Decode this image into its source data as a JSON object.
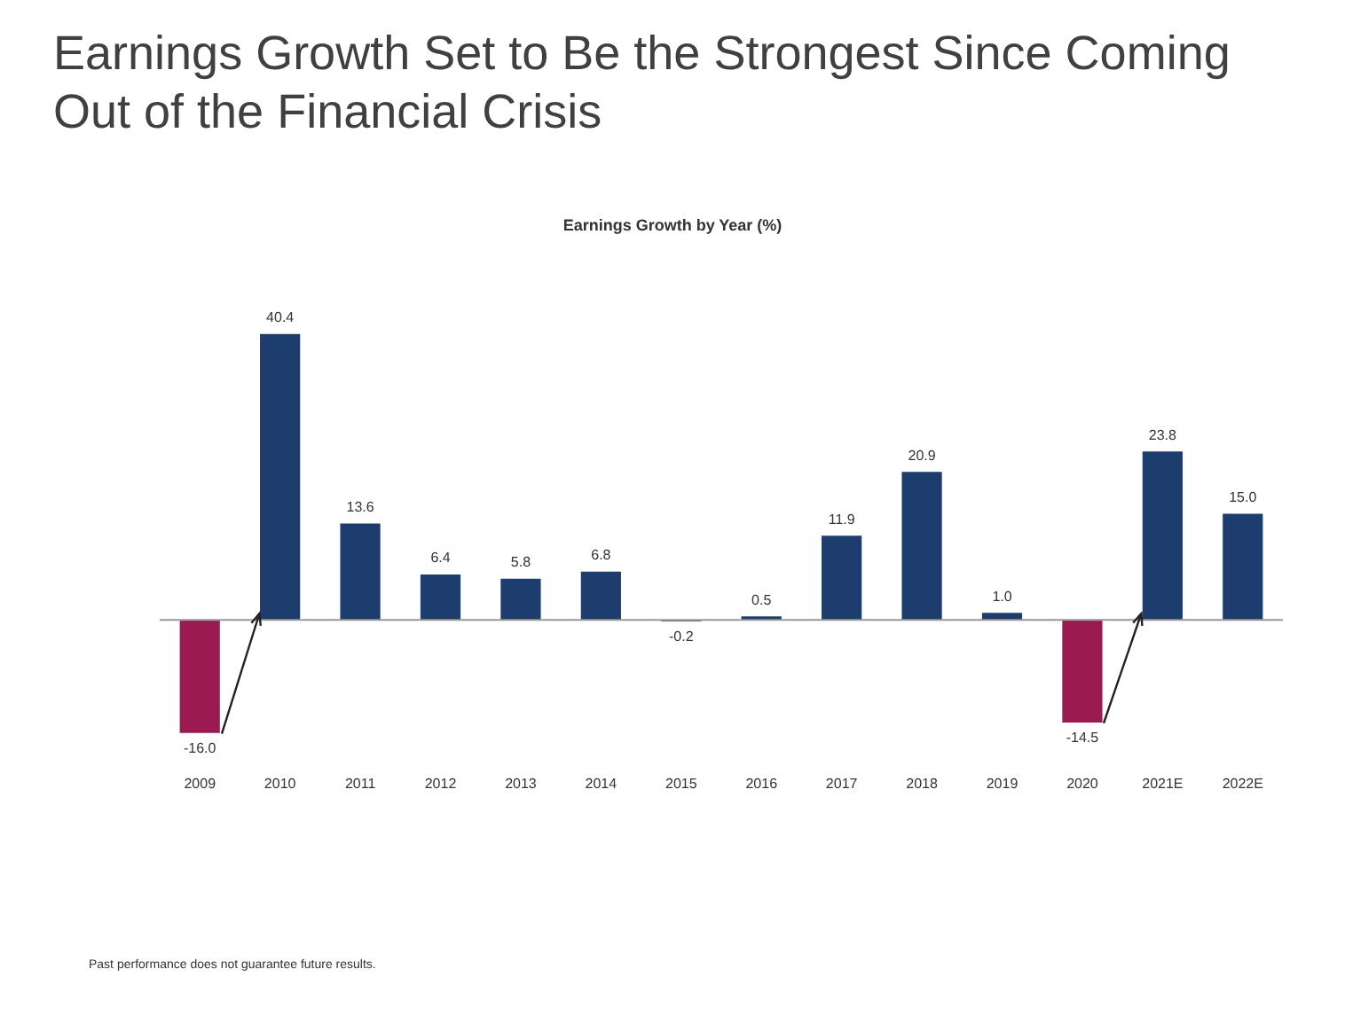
{
  "chart_data": {
    "type": "bar",
    "title": "Earnings Growth Set to Be the Strongest Since Coming Out of the Financial Crisis",
    "subtitle": "Earnings Growth by Year (%)",
    "categories": [
      "2009",
      "2010",
      "2011",
      "2012",
      "2013",
      "2014",
      "2015",
      "2016",
      "2017",
      "2018",
      "2019",
      "2020",
      "2021E",
      "2022E"
    ],
    "values": [
      -16.0,
      40.4,
      13.6,
      6.4,
      5.8,
      6.8,
      -0.2,
      0.5,
      11.9,
      20.9,
      1.0,
      -14.5,
      23.8,
      15.0
    ],
    "colors": [
      "#9c1a52",
      "#1d3d6e",
      "#1d3d6e",
      "#1d3d6e",
      "#1d3d6e",
      "#1d3d6e",
      "#1d3d6e",
      "#1d3d6e",
      "#1d3d6e",
      "#1d3d6e",
      "#1d3d6e",
      "#9c1a52",
      "#1d3d6e",
      "#1d3d6e"
    ],
    "value_labels": [
      "-16.0",
      "40.4",
      "13.6",
      "6.4",
      "5.8",
      "6.8",
      "-0.2",
      "0.5",
      "11.9",
      "20.9",
      "1.0",
      "-14.5",
      "23.8",
      "15.0"
    ],
    "grid": false,
    "legend": false,
    "annotations": [
      "Past performance does not guarantee future results."
    ]
  }
}
